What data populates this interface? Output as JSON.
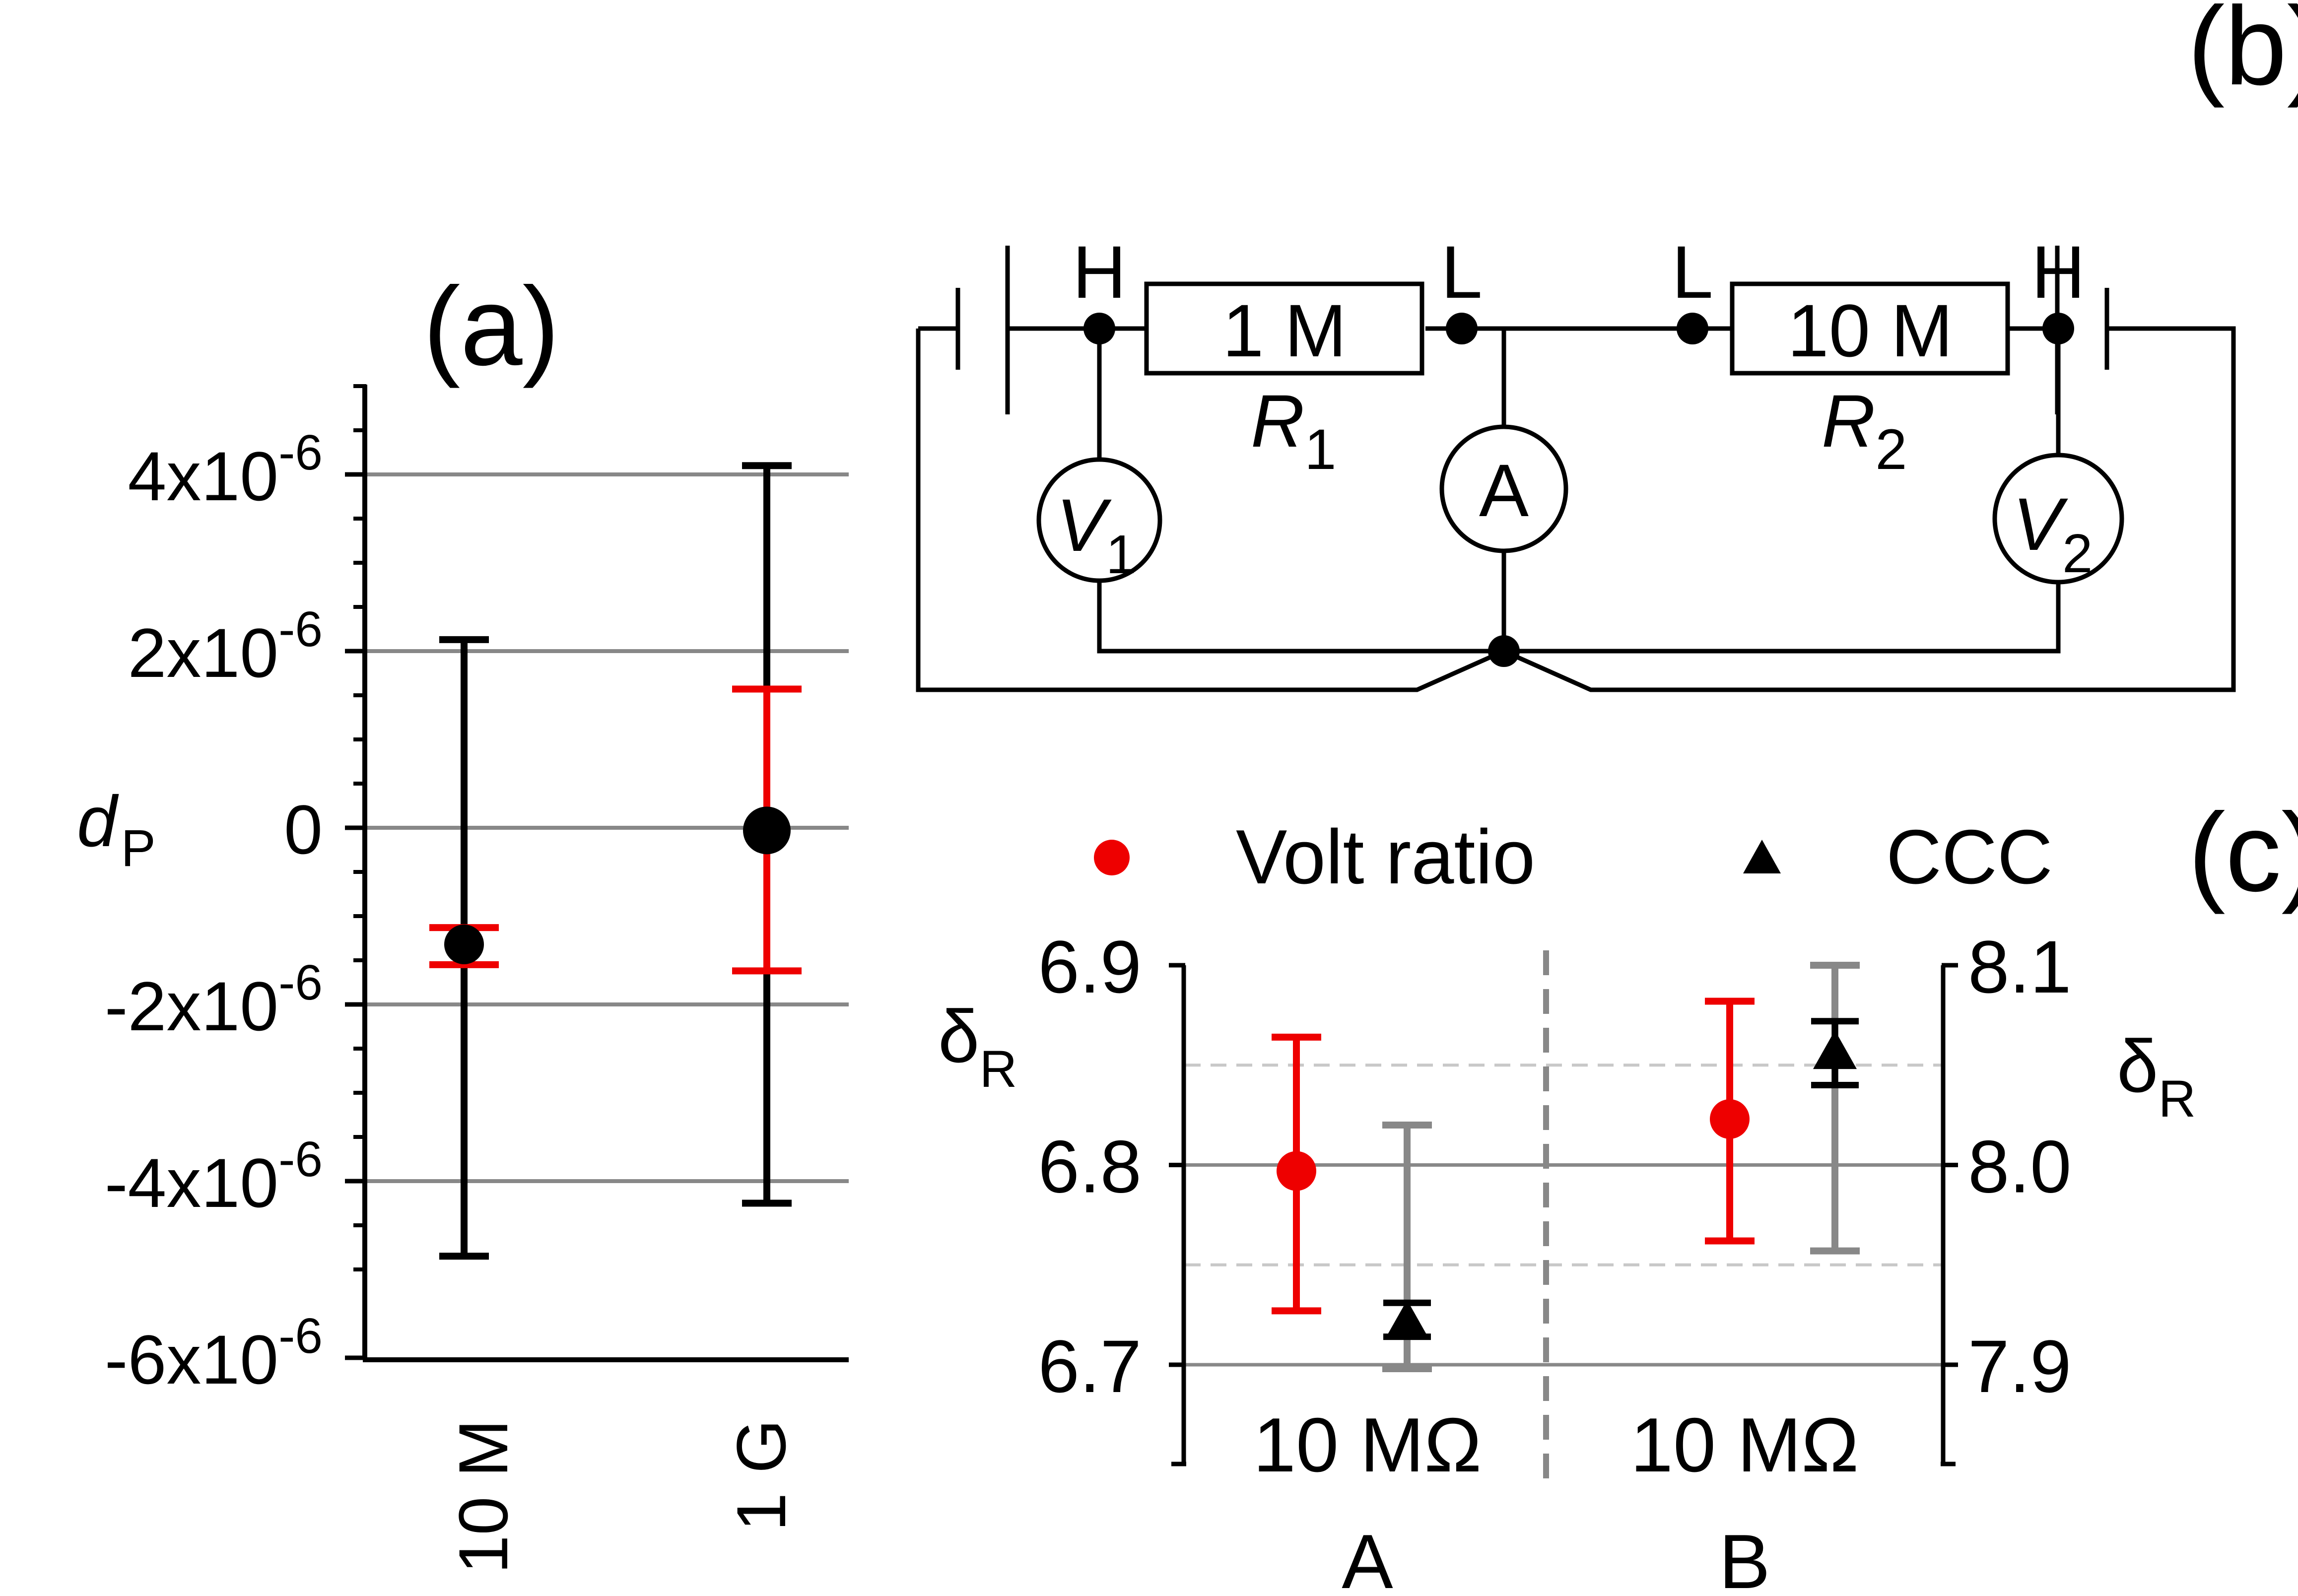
{
  "panels": {
    "a": "(a)",
    "b": "(b)",
    "c": "(c)"
  },
  "colors": {
    "black": "#000000",
    "red": "#ee0000",
    "gray": "#888888",
    "light_gray": "#c8c8c8"
  },
  "chart_data": [
    {
      "id": "a",
      "type": "scatter",
      "ylabel": "d",
      "ylabel_sub": "P",
      "ylim": [
        -6e-06,
        5e-06
      ],
      "yticks": [
        {
          "value": 4e-06,
          "mant": "4x10",
          "exp": "-6"
        },
        {
          "value": 2e-06,
          "mant": "2x10",
          "exp": "-6"
        },
        {
          "value": 0,
          "mant": "0",
          "exp": ""
        },
        {
          "value": -2e-06,
          "mant": "-2x10",
          "exp": "-6"
        },
        {
          "value": -4e-06,
          "mant": "-4x10",
          "exp": "-6"
        },
        {
          "value": -6e-06,
          "mant": "-6x10",
          "exp": "-6"
        }
      ],
      "categories": [
        "10 M",
        "1 G"
      ],
      "grid": true,
      "series": [
        {
          "color": "#000000",
          "values": [
            -1.32e-06,
            -3e-08
          ],
          "err_low": [
            -4.85e-06,
            -4.25e-06
          ],
          "err_high": [
            2.13e-06,
            4.1e-06
          ]
        },
        {
          "color": "#ee0000",
          "values": [
            -1.32e-06,
            -3e-08
          ],
          "err_low": [
            -1.55e-06,
            -1.62e-06
          ],
          "err_high": [
            -1.13e-06,
            1.57e-06
          ]
        }
      ]
    },
    {
      "id": "c",
      "type": "scatter",
      "left_axis": {
        "label": "δ",
        "label_sub": "R",
        "ylim": [
          6.7,
          6.9
        ],
        "ticks": [
          "6.9",
          "6.8",
          "6.7"
        ],
        "tick_values": [
          6.9,
          6.8,
          6.7
        ]
      },
      "right_axis": {
        "label": "δ",
        "label_sub": "R",
        "ylim": [
          7.9,
          8.1
        ],
        "ticks": [
          "8.1",
          "8.0",
          "7.9"
        ],
        "tick_values": [
          8.1,
          8.0,
          7.9
        ]
      },
      "groups": [
        {
          "label": "10 MΩ",
          "sublabel": "A"
        },
        {
          "label": "10 MΩ",
          "sublabel": "B"
        }
      ],
      "legend": [
        {
          "label": "Volt ratio",
          "marker": "circle",
          "color": "#ee0000"
        },
        {
          "label": "CCC",
          "marker": "triangle",
          "color": "#000000"
        }
      ],
      "legend_position": "top",
      "series": [
        {
          "name": "Volt ratio",
          "axis": "left",
          "marker": "circle",
          "color": "#ee0000",
          "errcolor": "#ee0000",
          "values": [
            6.797,
            6.823
          ],
          "err_low": [
            6.727,
            6.762
          ],
          "err_high": [
            6.864,
            6.882
          ]
        },
        {
          "name": "CCC",
          "axis": "left",
          "marker": "triangle",
          "color": "#000000",
          "errcolor": "#000000",
          "values": [
            6.722,
            6.857
          ],
          "err_low": [
            6.714,
            6.84
          ],
          "err_high": [
            6.731,
            6.872
          ]
        },
        {
          "name": "CCC",
          "axis": "left",
          "marker": "none",
          "color": "#888888",
          "errcolor": "#888888",
          "values": [
            6.722,
            6.857
          ],
          "err_low": [
            6.698,
            6.757
          ],
          "err_high": [
            6.82,
            6.9
          ]
        }
      ]
    }
  ],
  "circuit": {
    "terminals": {
      "h1": "H",
      "l1": "L",
      "l2": "L",
      "h2": "H"
    },
    "resistors": {
      "r1_value": "1 M",
      "r2_value": "10 M",
      "r1_name": "R",
      "r1_sub": "1",
      "r2_name": "R",
      "r2_sub": "2"
    },
    "meters": {
      "v1_name": "V",
      "v1_sub": "1",
      "ammeter": "A",
      "v2_name": "V",
      "v2_sub": "2"
    }
  }
}
